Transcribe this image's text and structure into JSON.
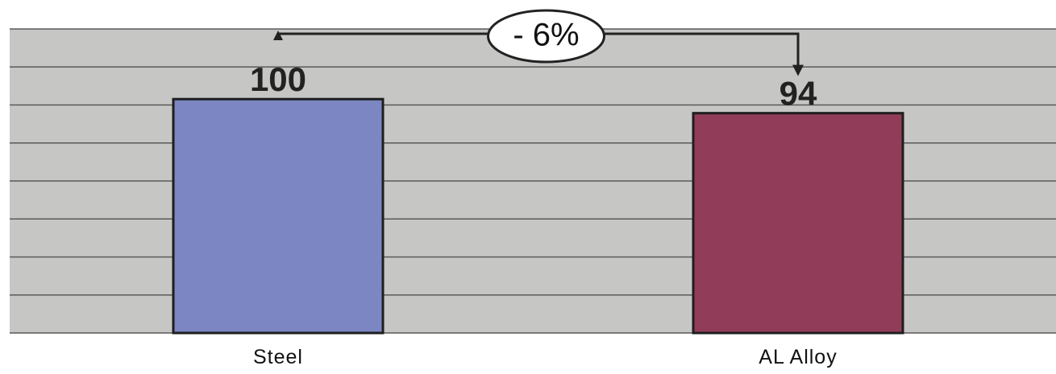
{
  "chart_data": {
    "type": "bar",
    "categories": [
      "Steel",
      "AL Alloy"
    ],
    "values": [
      100,
      94
    ],
    "data_labels": [
      "100",
      "94"
    ],
    "ylim": [
      0,
      130
    ],
    "grid": true,
    "title": "",
    "xlabel": "",
    "ylabel": "",
    "annotation": {
      "text": "- 6%",
      "from_category": "Steel",
      "to_category": "AL Alloy"
    }
  },
  "colors": {
    "plot_background": "#c6c6c4",
    "gridline": "#5a5a5a",
    "bar_outline": "#1e1e1e",
    "bars": [
      "#7b86c2",
      "#913d5a"
    ]
  }
}
